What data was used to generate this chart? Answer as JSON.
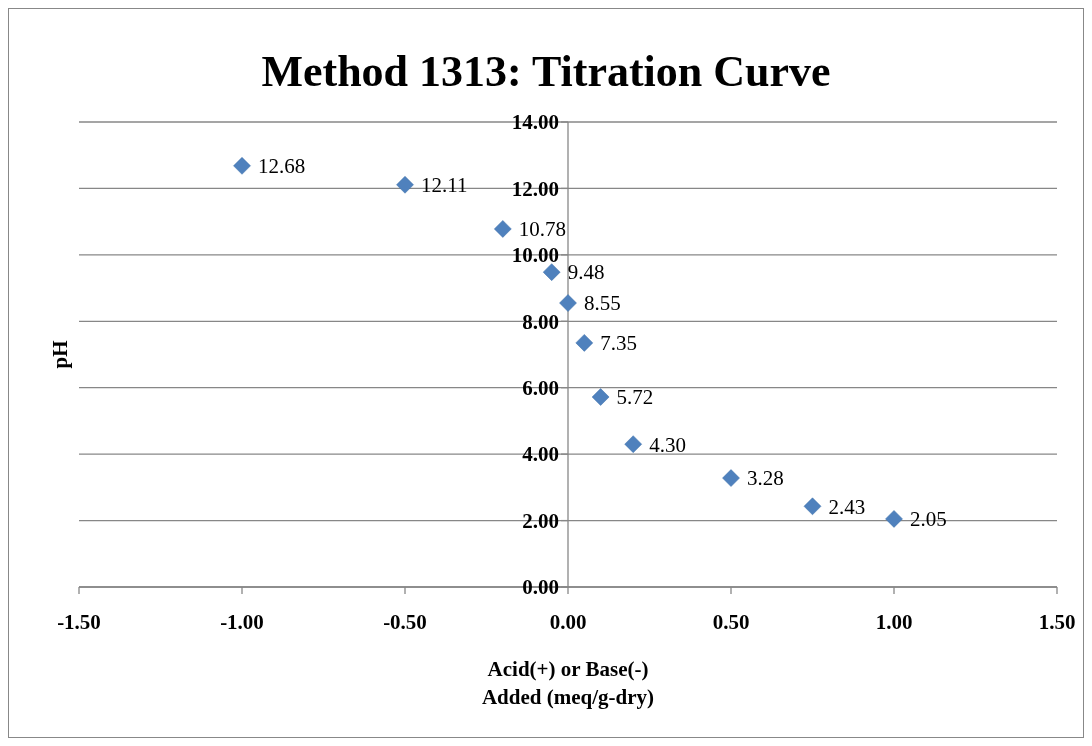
{
  "chart_data": {
    "type": "scatter",
    "title": "Method 1313: Titration Curve",
    "xlabel": "Acid(+) or Base(-)\nAdded (meq/g-dry)",
    "ylabel": "pH",
    "x": [
      -1.0,
      -0.5,
      -0.2,
      -0.05,
      0.0,
      0.05,
      0.1,
      0.2,
      0.5,
      0.75,
      1.0
    ],
    "series": [
      {
        "color": "#4f81bd",
        "values": [
          12.68,
          12.11,
          10.78,
          9.48,
          8.55,
          7.35,
          5.72,
          4.3,
          3.28,
          2.43,
          2.05
        ],
        "value_labels": [
          "12.68",
          "12.11",
          "10.78",
          "9.48",
          "8.55",
          "7.35",
          "5.72",
          "4.30",
          "3.28",
          "2.43",
          "2.05"
        ]
      }
    ],
    "xlim": [
      -1.5,
      1.5
    ],
    "ylim": [
      0,
      14
    ],
    "xticks": [
      {
        "value": -1.5,
        "label": "-1.50"
      },
      {
        "value": -1,
        "label": "-1.00"
      },
      {
        "value": -0.5,
        "label": "-0.50"
      },
      {
        "value": 0,
        "label": "0.00"
      },
      {
        "value": 0.5,
        "label": "0.50"
      },
      {
        "value": 1,
        "label": "1.00"
      },
      {
        "value": 1.5,
        "label": "1.50"
      }
    ],
    "yticks": [
      {
        "value": 0,
        "label": "0.00"
      },
      {
        "value": 2,
        "label": "2.00"
      },
      {
        "value": 4,
        "label": "4.00"
      },
      {
        "value": 6,
        "label": "6.00"
      },
      {
        "value": 8,
        "label": "8.00"
      },
      {
        "value": 10,
        "label": "10.00"
      },
      {
        "value": 12,
        "label": "12.00"
      },
      {
        "value": 14,
        "label": "14.00"
      }
    ],
    "grid": "y",
    "marker": "diamond"
  }
}
